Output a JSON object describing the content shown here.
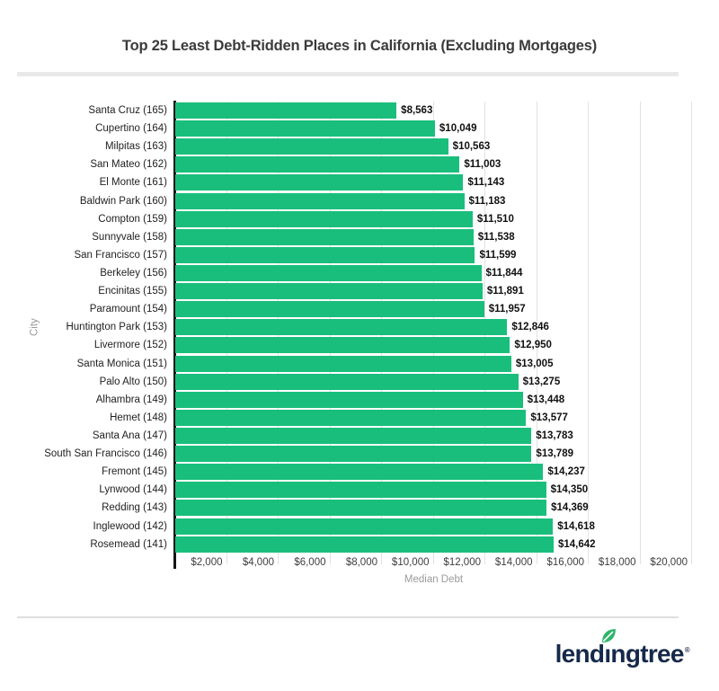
{
  "title": "Top 25 Least Debt-Ridden Places in California (Excluding Mortgages)",
  "chart_data": {
    "type": "bar",
    "orientation": "horizontal",
    "title": "Top 25 Least Debt-Ridden Places in California (Excluding Mortgages)",
    "xlabel": "Median Debt",
    "ylabel": "City",
    "xlim": [
      0,
      20000
    ],
    "grid": true,
    "x_ticks": [
      "$2,000",
      "$4,000",
      "$6,000",
      "$8,000",
      "$10,000",
      "$12,000",
      "$14,000",
      "$16,000",
      "$18,000",
      "$20,000"
    ],
    "x_tick_values": [
      2000,
      4000,
      6000,
      8000,
      10000,
      12000,
      14000,
      16000,
      18000,
      20000
    ],
    "categories": [
      "Santa Cruz (165)",
      "Cupertino (164)",
      "Milpitas (163)",
      "San Mateo (162)",
      "El Monte (161)",
      "Baldwin Park (160)",
      "Compton (159)",
      "Sunnyvale (158)",
      "San Francisco (157)",
      "Berkeley (156)",
      "Encinitas (155)",
      "Paramount (154)",
      "Huntington Park (153)",
      "Livermore (152)",
      "Santa Monica (151)",
      "Palo Alto (150)",
      "Alhambra (149)",
      "Hemet (148)",
      "Santa Ana (147)",
      "South San Francisco (146)",
      "Fremont (145)",
      "Lynwood (144)",
      "Redding (143)",
      "Inglewood (142)",
      "Rosemead (141)"
    ],
    "values": [
      8563,
      10049,
      10563,
      11003,
      11143,
      11183,
      11510,
      11538,
      11599,
      11844,
      11891,
      11957,
      12846,
      12950,
      13005,
      13275,
      13448,
      13577,
      13783,
      13789,
      14237,
      14350,
      14369,
      14618,
      14642
    ],
    "value_labels": [
      "$8,563",
      "$10,049",
      "$10,563",
      "$11,003",
      "$11,143",
      "$11,183",
      "$11,510",
      "$11,538",
      "$11,599",
      "$11,844",
      "$11,891",
      "$11,957",
      "$12,846",
      "$12,950",
      "$13,005",
      "$13,275",
      "$13,448",
      "$13,577",
      "$13,783",
      "$13,789",
      "$14,237",
      "$14,350",
      "$14,369",
      "$14,618",
      "$14,642"
    ],
    "bar_color": "#1abe7c",
    "gridline_color": "#e2e2e2",
    "legend_position": "none"
  },
  "footer": {
    "brand": "lendingtree",
    "registered_mark": "®",
    "brand_navy": "#15294a",
    "leaf_green": "#2fb56b"
  }
}
